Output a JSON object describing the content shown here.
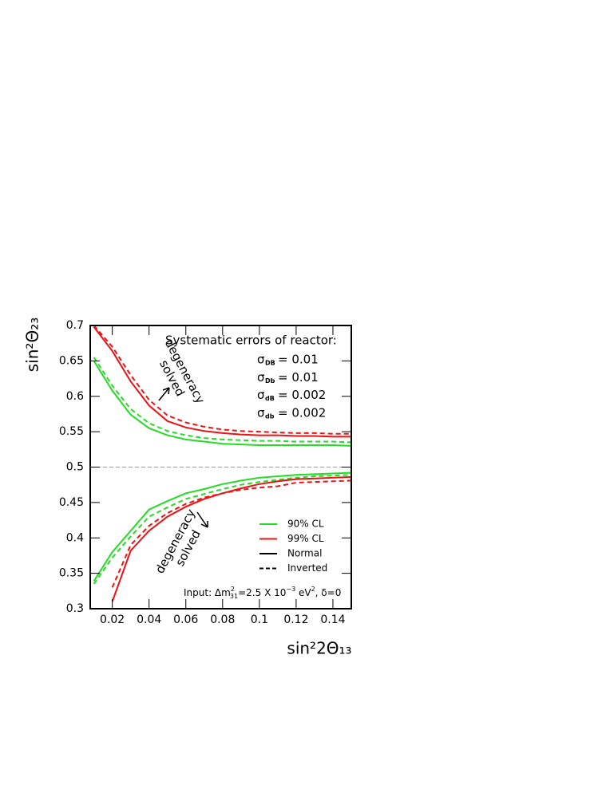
{
  "chart_data": {
    "type": "line",
    "x_label": "sin²2Θ₁₃",
    "y_label": "sin²Θ₂₃",
    "x": [
      0.01,
      0.02,
      0.03,
      0.04,
      0.05,
      0.06,
      0.07,
      0.08,
      0.09,
      0.1,
      0.11,
      0.12,
      0.13,
      0.14,
      0.15
    ],
    "xlim": [
      0.008,
      0.15
    ],
    "ylim": [
      0.3,
      0.7
    ],
    "xticks": [
      0.02,
      0.04,
      0.06,
      0.08,
      0.1,
      0.12,
      0.14
    ],
    "yticks": [
      0.3,
      0.35,
      0.4,
      0.45,
      0.5,
      0.55,
      0.6,
      0.65,
      0.7
    ],
    "reference_line": 0.5,
    "series": [
      {
        "color": "#22dd22",
        "dashed": false,
        "values": [
          0.65,
          0.608,
          0.574,
          0.555,
          0.545,
          0.539,
          0.536,
          0.533,
          0.532,
          0.531,
          0.531,
          0.531,
          0.531,
          0.531,
          0.53
        ]
      },
      {
        "color": "#22dd22",
        "dashed": true,
        "values": [
          0.655,
          0.615,
          0.582,
          0.562,
          0.551,
          0.545,
          0.541,
          0.539,
          0.538,
          0.537,
          0.537,
          0.536,
          0.536,
          0.536,
          0.535
        ]
      },
      {
        "color": "#ee1111",
        "dashed": false,
        "values": [
          0.698,
          0.664,
          0.621,
          0.587,
          0.565,
          0.556,
          0.551,
          0.548,
          0.546,
          0.545,
          0.545,
          0.544,
          0.544,
          0.543,
          0.543
        ]
      },
      {
        "color": "#ee1111",
        "dashed": true,
        "values": [
          0.7,
          0.67,
          0.63,
          0.595,
          0.573,
          0.563,
          0.557,
          0.553,
          0.551,
          0.55,
          0.549,
          0.548,
          0.548,
          0.547,
          0.547
        ]
      },
      {
        "color": "#22dd22",
        "dashed": false,
        "values": [
          0.339,
          0.38,
          0.41,
          0.44,
          0.452,
          0.463,
          0.469,
          0.476,
          0.481,
          0.485,
          0.487,
          0.489,
          0.49,
          0.491,
          0.492
        ]
      },
      {
        "color": "#22dd22",
        "dashed": true,
        "values": [
          0.335,
          0.372,
          0.402,
          0.43,
          0.443,
          0.455,
          0.462,
          0.469,
          0.475,
          0.479,
          0.482,
          0.485,
          0.487,
          0.488,
          0.489
        ]
      },
      {
        "color": "#ee1111",
        "dashed": false,
        "values": [
          null,
          0.31,
          0.382,
          0.41,
          0.43,
          0.444,
          0.455,
          0.463,
          0.47,
          0.476,
          0.48,
          0.483,
          0.484,
          0.485,
          0.486
        ]
      },
      {
        "color": "#ee1111",
        "dashed": true,
        "values": [
          null,
          0.33,
          0.39,
          0.417,
          0.435,
          0.448,
          0.457,
          0.463,
          0.468,
          0.471,
          0.473,
          0.478,
          0.479,
          0.48,
          0.481
        ]
      }
    ],
    "legend": [
      {
        "label": "90% CL",
        "color": "#22dd22",
        "dashed": false
      },
      {
        "label": "99% CL",
        "color": "#ee1111",
        "dashed": false
      },
      {
        "label": "Normal",
        "color": "#000000",
        "dashed": false
      },
      {
        "label": "Inverted",
        "color": "#000000",
        "dashed": true
      }
    ],
    "systematics_title": "Systematic errors of reactor:",
    "sigma_symbol": "σ",
    "systematics": [
      {
        "sub": "DB",
        "text": "= 0.01"
      },
      {
        "sub": "Db",
        "text": "= 0.01"
      },
      {
        "sub": "dB",
        "text": "= 0.002"
      },
      {
        "sub": "db",
        "text": "= 0.002"
      }
    ],
    "annotation_upper": [
      "degeneracy",
      "solved"
    ],
    "annotation_lower": [
      "degeneracy",
      "solved"
    ],
    "input_note": [
      {
        "text": "Input: Δm",
        "shift": null
      },
      {
        "text": "2",
        "shift": "sup"
      },
      {
        "text": "31",
        "shift": "sub"
      },
      {
        "text": "=2.5 X 10",
        "shift": null
      },
      {
        "text": "−3",
        "shift": "sup"
      },
      {
        "text": " eV",
        "shift": null
      },
      {
        "text": "2",
        "shift": "sup"
      },
      {
        "text": ", δ=0",
        "shift": null
      }
    ]
  }
}
